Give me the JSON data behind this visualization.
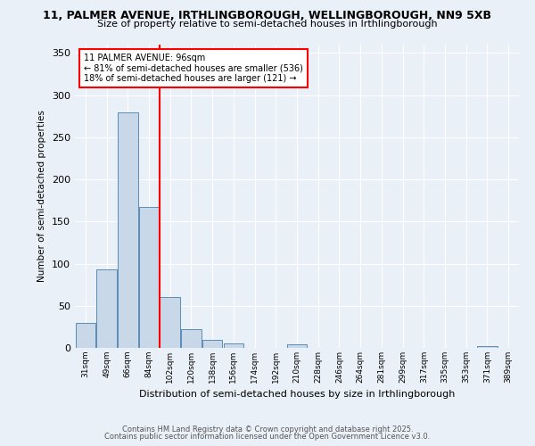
{
  "title1": "11, PALMER AVENUE, IRTHLINGBOROUGH, WELLINGBOROUGH, NN9 5XB",
  "title2": "Size of property relative to semi-detached houses in Irthlingborough",
  "xlabel": "Distribution of semi-detached houses by size in Irthlingborough",
  "ylabel": "Number of semi-detached properties",
  "bin_labels": [
    "31sqm",
    "49sqm",
    "66sqm",
    "84sqm",
    "102sqm",
    "120sqm",
    "138sqm",
    "156sqm",
    "174sqm",
    "192sqm",
    "210sqm",
    "228sqm",
    "246sqm",
    "264sqm",
    "281sqm",
    "299sqm",
    "317sqm",
    "335sqm",
    "353sqm",
    "371sqm",
    "389sqm"
  ],
  "bar_values": [
    30,
    93,
    280,
    167,
    60,
    22,
    10,
    5,
    0,
    0,
    4,
    0,
    0,
    0,
    0,
    0,
    0,
    0,
    0,
    2,
    0
  ],
  "bar_color": "#c8d8e8",
  "bar_edge_color": "#5b8db8",
  "red_line_bin": 4,
  "annotation_title": "11 PALMER AVENUE: 96sqm",
  "annotation_line1": "← 81% of semi-detached houses are smaller (536)",
  "annotation_line2": "18% of semi-detached houses are larger (121) →",
  "footer1": "Contains HM Land Registry data © Crown copyright and database right 2025.",
  "footer2": "Contains public sector information licensed under the Open Government Licence v3.0.",
  "ylim": [
    0,
    360
  ],
  "bg_color": "#eaf0f8",
  "plot_bg_color": "#eaf0f8"
}
